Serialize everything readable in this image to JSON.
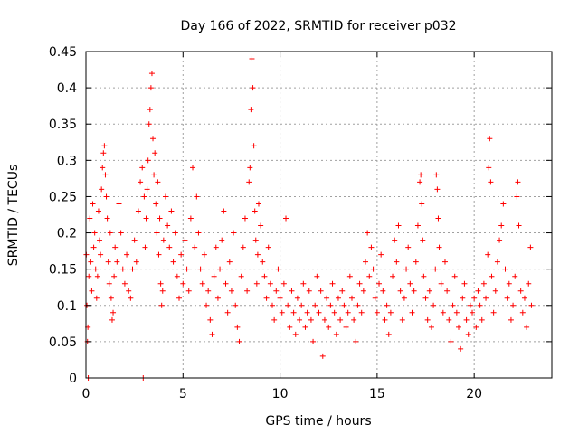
{
  "chart_data": {
    "type": "scatter",
    "title": "Day 166 of 2022, SRMTID for receiver p032",
    "xlabel": "GPS time / hours",
    "ylabel": "SRMTID / TECUs",
    "xlim": [
      0,
      24
    ],
    "ylim": [
      0,
      0.45
    ],
    "xticks": [
      0,
      5,
      10,
      15,
      20
    ],
    "xtick_labels": [
      "0",
      "5",
      "10",
      "15",
      "20"
    ],
    "yticks": [
      0,
      0.05,
      0.1,
      0.15,
      0.2,
      0.25,
      0.3,
      0.35,
      0.4,
      0.45
    ],
    "ytick_labels": [
      "0",
      "0.05",
      "0.1",
      "0.15",
      "0.2",
      "0.25",
      "0.3",
      "0.35",
      "0.4",
      "0.45"
    ],
    "grid": true,
    "marker": "plus",
    "marker_color": "#ff0000",
    "series": [
      {
        "name": "SRMTID",
        "points": [
          [
            0.02,
            0.17
          ],
          [
            0.05,
            0.1
          ],
          [
            0.08,
            0.05
          ],
          [
            0.1,
            0.07
          ],
          [
            0.12,
            0.0
          ],
          [
            0.15,
            0.14
          ],
          [
            0.2,
            0.22
          ],
          [
            0.25,
            0.16
          ],
          [
            0.3,
            0.12
          ],
          [
            0.35,
            0.24
          ],
          [
            0.4,
            0.18
          ],
          [
            0.45,
            0.2
          ],
          [
            0.5,
            0.15
          ],
          [
            0.55,
            0.11
          ],
          [
            0.6,
            0.14
          ],
          [
            0.65,
            0.23
          ],
          [
            0.7,
            0.19
          ],
          [
            0.75,
            0.17
          ],
          [
            0.8,
            0.26
          ],
          [
            0.85,
            0.29
          ],
          [
            0.9,
            0.31
          ],
          [
            0.95,
            0.32
          ],
          [
            1.0,
            0.28
          ],
          [
            1.05,
            0.25
          ],
          [
            1.1,
            0.22
          ],
          [
            1.15,
            0.16
          ],
          [
            1.2,
            0.13
          ],
          [
            1.25,
            0.2
          ],
          [
            1.3,
            0.11
          ],
          [
            1.35,
            0.08
          ],
          [
            1.4,
            0.09
          ],
          [
            1.45,
            0.14
          ],
          [
            1.5,
            0.18
          ],
          [
            1.6,
            0.16
          ],
          [
            1.7,
            0.24
          ],
          [
            1.8,
            0.2
          ],
          [
            1.9,
            0.15
          ],
          [
            2.0,
            0.13
          ],
          [
            2.1,
            0.17
          ],
          [
            2.2,
            0.12
          ],
          [
            2.3,
            0.11
          ],
          [
            2.4,
            0.15
          ],
          [
            2.5,
            0.19
          ],
          [
            2.6,
            0.16
          ],
          [
            2.7,
            0.23
          ],
          [
            2.8,
            0.27
          ],
          [
            2.9,
            0.29
          ],
          [
            2.95,
            0.0
          ],
          [
            3.0,
            0.25
          ],
          [
            3.05,
            0.18
          ],
          [
            3.1,
            0.22
          ],
          [
            3.15,
            0.26
          ],
          [
            3.2,
            0.3
          ],
          [
            3.25,
            0.35
          ],
          [
            3.3,
            0.37
          ],
          [
            3.35,
            0.4
          ],
          [
            3.4,
            0.42
          ],
          [
            3.45,
            0.33
          ],
          [
            3.5,
            0.28
          ],
          [
            3.55,
            0.31
          ],
          [
            3.6,
            0.24
          ],
          [
            3.65,
            0.2
          ],
          [
            3.7,
            0.27
          ],
          [
            3.75,
            0.17
          ],
          [
            3.8,
            0.22
          ],
          [
            3.85,
            0.13
          ],
          [
            3.9,
            0.1
          ],
          [
            3.95,
            0.12
          ],
          [
            4.0,
            0.19
          ],
          [
            4.1,
            0.25
          ],
          [
            4.2,
            0.21
          ],
          [
            4.3,
            0.18
          ],
          [
            4.4,
            0.23
          ],
          [
            4.5,
            0.16
          ],
          [
            4.6,
            0.2
          ],
          [
            4.7,
            0.14
          ],
          [
            4.8,
            0.11
          ],
          [
            4.9,
            0.17
          ],
          [
            5.0,
            0.13
          ],
          [
            5.1,
            0.19
          ],
          [
            5.2,
            0.15
          ],
          [
            5.3,
            0.12
          ],
          [
            5.4,
            0.22
          ],
          [
            5.5,
            0.29
          ],
          [
            5.6,
            0.18
          ],
          [
            5.7,
            0.25
          ],
          [
            5.8,
            0.2
          ],
          [
            5.9,
            0.15
          ],
          [
            6.0,
            0.13
          ],
          [
            6.1,
            0.17
          ],
          [
            6.2,
            0.1
          ],
          [
            6.3,
            0.12
          ],
          [
            6.4,
            0.08
          ],
          [
            6.5,
            0.06
          ],
          [
            6.6,
            0.14
          ],
          [
            6.7,
            0.18
          ],
          [
            6.8,
            0.11
          ],
          [
            6.9,
            0.15
          ],
          [
            7.0,
            0.19
          ],
          [
            7.1,
            0.23
          ],
          [
            7.2,
            0.13
          ],
          [
            7.3,
            0.09
          ],
          [
            7.4,
            0.16
          ],
          [
            7.5,
            0.12
          ],
          [
            7.6,
            0.2
          ],
          [
            7.7,
            0.1
          ],
          [
            7.8,
            0.07
          ],
          [
            7.9,
            0.05
          ],
          [
            8.0,
            0.14
          ],
          [
            8.1,
            0.18
          ],
          [
            8.2,
            0.22
          ],
          [
            8.3,
            0.12
          ],
          [
            8.4,
            0.27
          ],
          [
            8.45,
            0.29
          ],
          [
            8.5,
            0.37
          ],
          [
            8.55,
            0.44
          ],
          [
            8.6,
            0.4
          ],
          [
            8.65,
            0.32
          ],
          [
            8.7,
            0.23
          ],
          [
            8.75,
            0.19
          ],
          [
            8.8,
            0.13
          ],
          [
            8.85,
            0.17
          ],
          [
            8.9,
            0.24
          ],
          [
            9.0,
            0.21
          ],
          [
            9.1,
            0.16
          ],
          [
            9.2,
            0.14
          ],
          [
            9.3,
            0.11
          ],
          [
            9.4,
            0.18
          ],
          [
            9.5,
            0.13
          ],
          [
            9.6,
            0.1
          ],
          [
            9.7,
            0.08
          ],
          [
            9.8,
            0.12
          ],
          [
            9.9,
            0.15
          ],
          [
            10.0,
            0.11
          ],
          [
            10.1,
            0.09
          ],
          [
            10.2,
            0.13
          ],
          [
            10.3,
            0.22
          ],
          [
            10.4,
            0.1
          ],
          [
            10.5,
            0.07
          ],
          [
            10.6,
            0.12
          ],
          [
            10.7,
            0.09
          ],
          [
            10.8,
            0.06
          ],
          [
            10.9,
            0.11
          ],
          [
            11.0,
            0.08
          ],
          [
            11.1,
            0.1
          ],
          [
            11.2,
            0.13
          ],
          [
            11.3,
            0.07
          ],
          [
            11.4,
            0.09
          ],
          [
            11.5,
            0.12
          ],
          [
            11.6,
            0.08
          ],
          [
            11.7,
            0.05
          ],
          [
            11.8,
            0.1
          ],
          [
            11.9,
            0.14
          ],
          [
            12.0,
            0.09
          ],
          [
            12.1,
            0.12
          ],
          [
            12.2,
            0.03
          ],
          [
            12.3,
            0.08
          ],
          [
            12.4,
            0.11
          ],
          [
            12.5,
            0.07
          ],
          [
            12.6,
            0.1
          ],
          [
            12.7,
            0.13
          ],
          [
            12.8,
            0.09
          ],
          [
            12.9,
            0.06
          ],
          [
            13.0,
            0.11
          ],
          [
            13.1,
            0.08
          ],
          [
            13.2,
            0.12
          ],
          [
            13.3,
            0.1
          ],
          [
            13.4,
            0.07
          ],
          [
            13.5,
            0.09
          ],
          [
            13.6,
            0.14
          ],
          [
            13.7,
            0.11
          ],
          [
            13.8,
            0.08
          ],
          [
            13.9,
            0.05
          ],
          [
            14.0,
            0.1
          ],
          [
            14.1,
            0.13
          ],
          [
            14.2,
            0.09
          ],
          [
            14.3,
            0.12
          ],
          [
            14.4,
            0.16
          ],
          [
            14.5,
            0.2
          ],
          [
            14.6,
            0.14
          ],
          [
            14.7,
            0.18
          ],
          [
            14.8,
            0.15
          ],
          [
            14.9,
            0.11
          ],
          [
            15.0,
            0.09
          ],
          [
            15.1,
            0.13
          ],
          [
            15.2,
            0.17
          ],
          [
            15.3,
            0.12
          ],
          [
            15.4,
            0.08
          ],
          [
            15.5,
            0.1
          ],
          [
            15.6,
            0.06
          ],
          [
            15.7,
            0.09
          ],
          [
            15.8,
            0.14
          ],
          [
            15.9,
            0.19
          ],
          [
            16.0,
            0.16
          ],
          [
            16.1,
            0.21
          ],
          [
            16.2,
            0.12
          ],
          [
            16.3,
            0.08
          ],
          [
            16.4,
            0.11
          ],
          [
            16.5,
            0.15
          ],
          [
            16.6,
            0.18
          ],
          [
            16.7,
            0.13
          ],
          [
            16.8,
            0.09
          ],
          [
            16.9,
            0.12
          ],
          [
            17.0,
            0.16
          ],
          [
            17.1,
            0.21
          ],
          [
            17.2,
            0.27
          ],
          [
            17.25,
            0.28
          ],
          [
            17.3,
            0.24
          ],
          [
            17.35,
            0.19
          ],
          [
            17.4,
            0.14
          ],
          [
            17.5,
            0.11
          ],
          [
            17.6,
            0.08
          ],
          [
            17.7,
            0.12
          ],
          [
            17.8,
            0.07
          ],
          [
            17.9,
            0.1
          ],
          [
            18.0,
            0.15
          ],
          [
            18.05,
            0.28
          ],
          [
            18.1,
            0.26
          ],
          [
            18.15,
            0.22
          ],
          [
            18.2,
            0.18
          ],
          [
            18.3,
            0.13
          ],
          [
            18.4,
            0.09
          ],
          [
            18.5,
            0.16
          ],
          [
            18.6,
            0.12
          ],
          [
            18.7,
            0.08
          ],
          [
            18.8,
            0.05
          ],
          [
            18.9,
            0.1
          ],
          [
            19.0,
            0.14
          ],
          [
            19.1,
            0.09
          ],
          [
            19.2,
            0.07
          ],
          [
            19.3,
            0.04
          ],
          [
            19.4,
            0.11
          ],
          [
            19.5,
            0.13
          ],
          [
            19.6,
            0.08
          ],
          [
            19.7,
            0.06
          ],
          [
            19.8,
            0.1
          ],
          [
            19.9,
            0.09
          ],
          [
            20.0,
            0.11
          ],
          [
            20.1,
            0.07
          ],
          [
            20.2,
            0.12
          ],
          [
            20.3,
            0.1
          ],
          [
            20.4,
            0.08
          ],
          [
            20.5,
            0.13
          ],
          [
            20.6,
            0.11
          ],
          [
            20.7,
            0.17
          ],
          [
            20.75,
            0.29
          ],
          [
            20.8,
            0.33
          ],
          [
            20.85,
            0.27
          ],
          [
            20.9,
            0.14
          ],
          [
            21.0,
            0.09
          ],
          [
            21.1,
            0.12
          ],
          [
            21.2,
            0.16
          ],
          [
            21.3,
            0.19
          ],
          [
            21.4,
            0.21
          ],
          [
            21.5,
            0.24
          ],
          [
            21.6,
            0.15
          ],
          [
            21.7,
            0.11
          ],
          [
            21.8,
            0.13
          ],
          [
            21.9,
            0.08
          ],
          [
            22.0,
            0.1
          ],
          [
            22.1,
            0.14
          ],
          [
            22.2,
            0.25
          ],
          [
            22.25,
            0.27
          ],
          [
            22.3,
            0.21
          ],
          [
            22.4,
            0.12
          ],
          [
            22.5,
            0.09
          ],
          [
            22.6,
            0.11
          ],
          [
            22.7,
            0.07
          ],
          [
            22.8,
            0.13
          ],
          [
            22.9,
            0.18
          ],
          [
            22.95,
            0.1
          ]
        ]
      }
    ]
  }
}
